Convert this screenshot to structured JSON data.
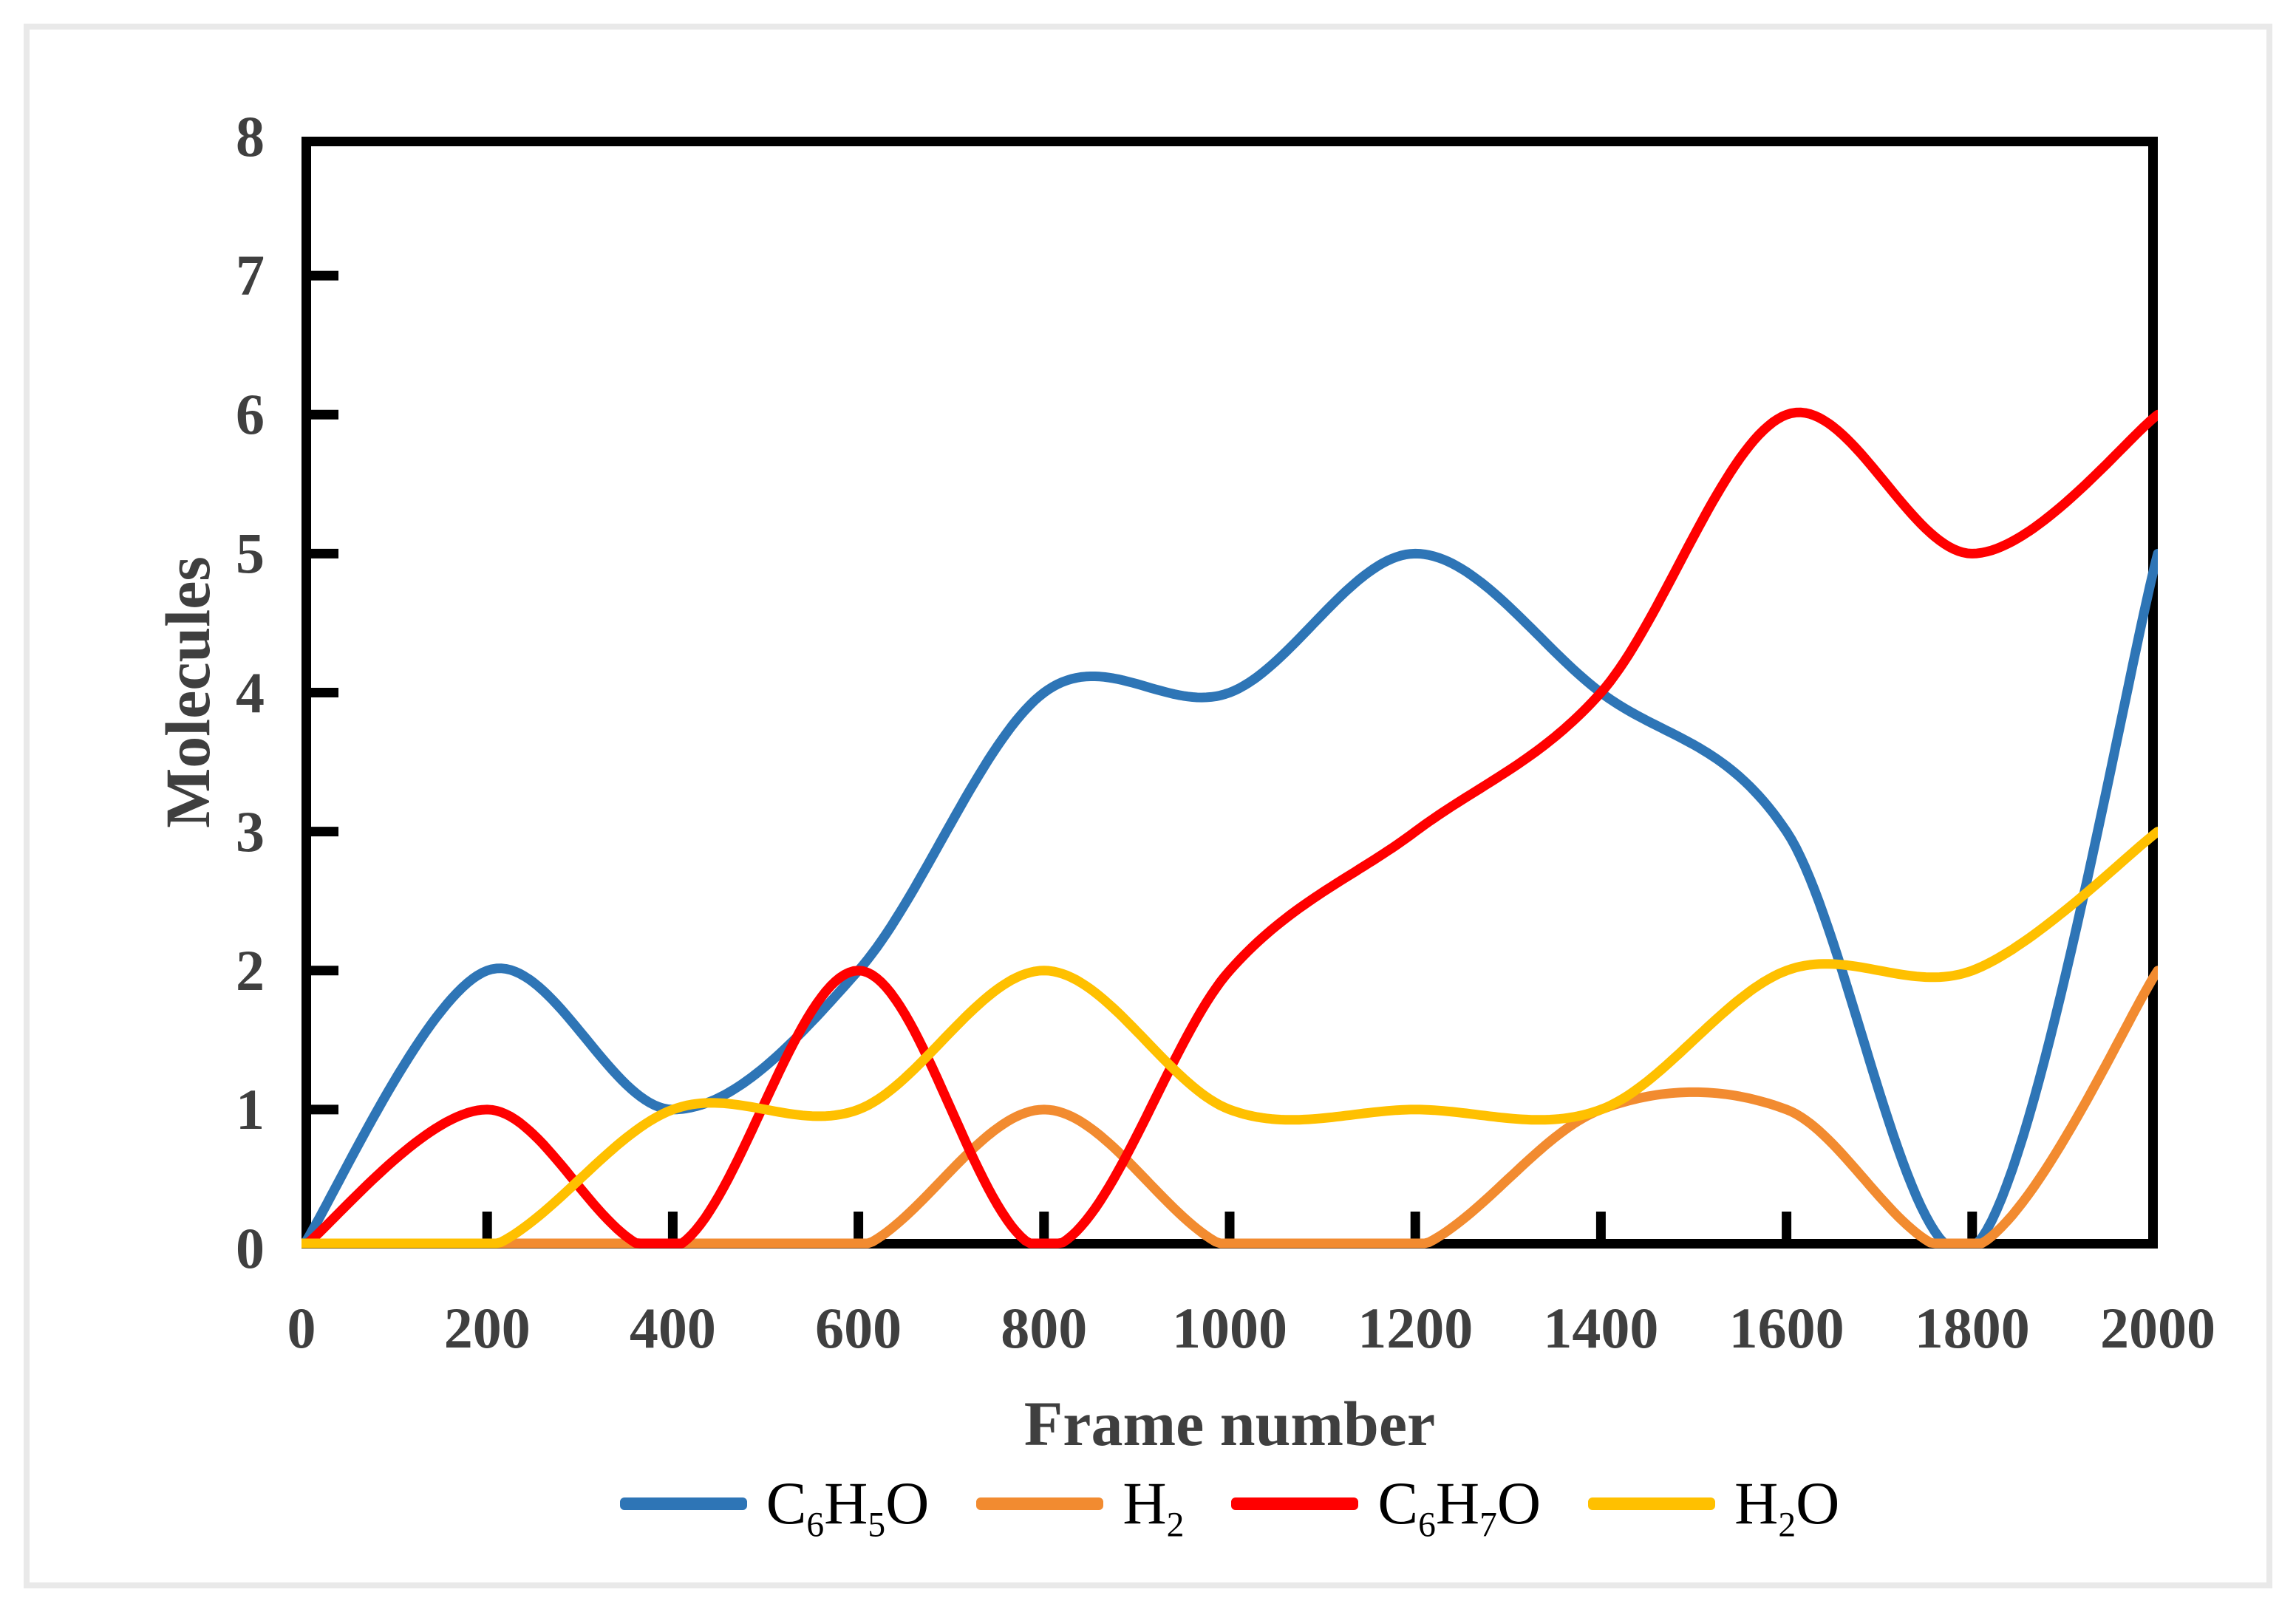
{
  "page": {
    "background": "#ffffff",
    "frame_border_color": "#e9e9e9"
  },
  "chart_data": {
    "type": "line",
    "title": "",
    "xlabel": "Frame number",
    "ylabel": "Molecules",
    "x": [
      0,
      200,
      400,
      600,
      800,
      1000,
      1200,
      1400,
      1600,
      1800,
      2000
    ],
    "xlim": [
      0,
      2000
    ],
    "ylim": [
      0,
      8
    ],
    "xticks": [
      0,
      200,
      400,
      600,
      800,
      1000,
      1200,
      1400,
      1600,
      1800,
      2000
    ],
    "yticks": [
      0,
      1,
      2,
      3,
      4,
      5,
      6,
      7,
      8
    ],
    "grid": false,
    "legend_position": "bottom-center",
    "smoothing": "catmull-rom",
    "line_width": 13,
    "axis_color": "#000000",
    "tick_label_color": "#3f3f3f",
    "legend_text_color": "#000000",
    "series": [
      {
        "name": "C6H5O",
        "color": "#2E75B6",
        "values": [
          0,
          2,
          1,
          2,
          4,
          4,
          5,
          4,
          3,
          0,
          5
        ]
      },
      {
        "name": "H2",
        "color": "#F28B30",
        "values": [
          0,
          0,
          0,
          0,
          1,
          0,
          0,
          1,
          1,
          0,
          2
        ]
      },
      {
        "name": "C6H7O",
        "color": "#FF0000",
        "values": [
          0,
          1,
          0,
          2,
          0,
          2,
          3,
          4,
          6,
          5,
          6
        ]
      },
      {
        "name": "H2O",
        "color": "#FFC000",
        "values": [
          0,
          0,
          1,
          1,
          2,
          1,
          1,
          1,
          2,
          2,
          3
        ]
      }
    ]
  }
}
